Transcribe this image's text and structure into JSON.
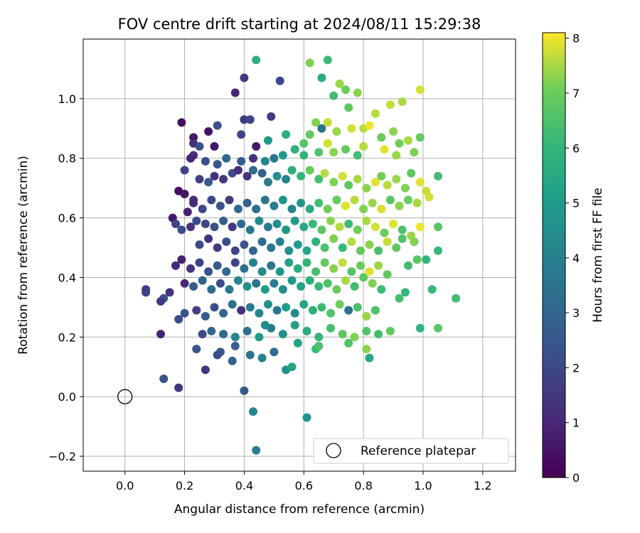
{
  "chart_data": {
    "type": "scatter",
    "title": "FOV centre drift starting at 2024/08/11 15:29:38",
    "xlabel": "Angular distance from reference (arcmin)",
    "ylabel": "Rotation from reference (arcmin)",
    "xlim": [
      -0.14,
      1.31
    ],
    "ylim": [
      -0.25,
      1.2
    ],
    "xticks": [
      "0.0",
      "0.2",
      "0.4",
      "0.6",
      "0.8",
      "1.0",
      "1.2"
    ],
    "yticks": [
      "−0.2",
      "0.0",
      "0.2",
      "0.4",
      "0.6",
      "0.8",
      "1.0"
    ],
    "grid": true,
    "colormap": "viridis",
    "colorbar": {
      "label": "Hours from first FF file",
      "range": [
        0,
        8.1
      ],
      "ticks": [
        "0",
        "1",
        "2",
        "3",
        "4",
        "5",
        "6",
        "7",
        "8"
      ]
    },
    "reference": {
      "label": "Reference platepar",
      "x": 0.0,
      "y": 0.0
    },
    "legend": {
      "placement": "lower-right"
    },
    "notes": "Approximately 1100 observation points; the full set cannot be read exactly, so a representative sample is listed with estimated positions and colour (hours).",
    "points": [
      [
        0.19,
        0.92,
        0.4
      ],
      [
        0.37,
        1.02,
        0.9
      ],
      [
        0.4,
        1.07,
        1.5
      ],
      [
        0.52,
        1.06,
        2.0
      ],
      [
        0.44,
        1.13,
        5.8
      ],
      [
        0.62,
        1.12,
        7.2
      ],
      [
        0.68,
        1.13,
        6.2
      ],
      [
        0.66,
        1.07,
        5.6
      ],
      [
        0.7,
        1.01,
        6.3
      ],
      [
        0.72,
        1.05,
        7.4
      ],
      [
        0.74,
        1.03,
        7.0
      ],
      [
        0.78,
        1.02,
        7.3
      ],
      [
        0.99,
        1.03,
        7.8
      ],
      [
        0.93,
        0.99,
        7.5
      ],
      [
        0.89,
        0.98,
        7.7
      ],
      [
        0.84,
        0.95,
        7.6
      ],
      [
        0.75,
        0.97,
        6.8
      ],
      [
        0.49,
        0.94,
        1.6
      ],
      [
        0.4,
        0.93,
        1.5
      ],
      [
        0.42,
        0.93,
        2.0
      ],
      [
        0.39,
        0.88,
        1.9
      ],
      [
        0.28,
        0.89,
        0.5
      ],
      [
        0.23,
        0.87,
        0.6
      ],
      [
        0.23,
        0.85,
        1.2
      ],
      [
        0.25,
        0.84,
        2.3
      ],
      [
        0.31,
        0.91,
        2.3
      ],
      [
        0.3,
        0.84,
        0.5
      ],
      [
        0.23,
        0.81,
        1.2
      ],
      [
        0.44,
        0.84,
        0.6
      ],
      [
        0.48,
        0.86,
        4.8
      ],
      [
        0.54,
        0.88,
        5.7
      ],
      [
        0.62,
        0.88,
        6.9
      ],
      [
        0.6,
        0.85,
        6.7
      ],
      [
        0.64,
        0.92,
        7.2
      ],
      [
        0.66,
        0.9,
        3.5
      ],
      [
        0.68,
        0.92,
        7.7
      ],
      [
        0.71,
        0.89,
        7.4
      ],
      [
        0.76,
        0.9,
        7.8
      ],
      [
        0.8,
        0.9,
        7.6
      ],
      [
        0.82,
        0.91,
        8.0
      ],
      [
        0.86,
        0.87,
        7.0
      ],
      [
        0.9,
        0.89,
        7.3
      ],
      [
        0.92,
        0.85,
        7.1
      ],
      [
        0.95,
        0.86,
        7.5
      ],
      [
        0.99,
        0.87,
        6.9
      ],
      [
        0.97,
        0.82,
        7.2
      ],
      [
        0.91,
        0.81,
        7.4
      ],
      [
        0.87,
        0.83,
        7.9
      ],
      [
        0.8,
        0.84,
        7.6
      ],
      [
        0.78,
        0.81,
        6.4
      ],
      [
        0.74,
        0.83,
        6.9
      ],
      [
        0.7,
        0.82,
        7.3
      ],
      [
        0.68,
        0.85,
        7.8
      ],
      [
        0.65,
        0.82,
        6.5
      ],
      [
        0.6,
        0.81,
        6.0
      ],
      [
        0.57,
        0.83,
        5.8
      ],
      [
        0.53,
        0.81,
        4.8
      ],
      [
        0.5,
        0.8,
        3.6
      ],
      [
        0.47,
        0.79,
        4.2
      ],
      [
        0.43,
        0.8,
        1.3
      ],
      [
        0.39,
        0.79,
        2.6
      ],
      [
        0.34,
        0.8,
        2.9
      ],
      [
        0.31,
        0.78,
        2.5
      ],
      [
        0.27,
        0.79,
        2.2
      ],
      [
        0.22,
        0.8,
        0.9
      ],
      [
        0.2,
        0.76,
        1.8
      ],
      [
        0.18,
        0.69,
        0.4
      ],
      [
        0.2,
        0.68,
        0.5
      ],
      [
        0.23,
        0.66,
        1.2
      ],
      [
        0.25,
        0.73,
        1.7
      ],
      [
        0.28,
        0.72,
        2.6
      ],
      [
        0.3,
        0.74,
        1.2
      ],
      [
        0.33,
        0.73,
        1.5
      ],
      [
        0.36,
        0.75,
        2.1
      ],
      [
        0.38,
        0.76,
        1.2
      ],
      [
        0.41,
        0.74,
        1.4
      ],
      [
        0.43,
        0.76,
        3.1
      ],
      [
        0.46,
        0.75,
        2.7
      ],
      [
        0.48,
        0.72,
        3.8
      ],
      [
        0.51,
        0.74,
        4.4
      ],
      [
        0.54,
        0.73,
        4.0
      ],
      [
        0.56,
        0.76,
        5.7
      ],
      [
        0.59,
        0.74,
        6.0
      ],
      [
        0.62,
        0.76,
        7.0
      ],
      [
        0.65,
        0.73,
        6.4
      ],
      [
        0.67,
        0.75,
        7.6
      ],
      [
        0.7,
        0.72,
        7.2
      ],
      [
        0.73,
        0.74,
        7.8
      ],
      [
        0.75,
        0.71,
        6.8
      ],
      [
        0.78,
        0.73,
        7.5
      ],
      [
        0.81,
        0.7,
        7.3
      ],
      [
        0.84,
        0.72,
        7.9
      ],
      [
        0.86,
        0.74,
        7.1
      ],
      [
        0.88,
        0.71,
        7.6
      ],
      [
        0.91,
        0.73,
        7.4
      ],
      [
        0.94,
        0.7,
        7.2
      ],
      [
        0.96,
        0.75,
        6.8
      ],
      [
        0.99,
        0.72,
        7.9
      ],
      [
        1.01,
        0.69,
        7.7
      ],
      [
        1.05,
        0.74,
        6.3
      ],
      [
        1.02,
        0.67,
        7.8
      ],
      [
        0.98,
        0.65,
        7.5
      ],
      [
        0.95,
        0.66,
        7.0
      ],
      [
        0.92,
        0.64,
        7.3
      ],
      [
        0.89,
        0.66,
        6.7
      ],
      [
        0.86,
        0.63,
        7.8
      ],
      [
        0.83,
        0.65,
        7.4
      ],
      [
        0.8,
        0.63,
        7.2
      ],
      [
        0.77,
        0.66,
        7.6
      ],
      [
        0.74,
        0.64,
        7.9
      ],
      [
        0.71,
        0.66,
        6.9
      ],
      [
        0.68,
        0.63,
        7.1
      ],
      [
        0.65,
        0.65,
        6.4
      ],
      [
        0.62,
        0.63,
        5.6
      ],
      [
        0.59,
        0.65,
        4.8
      ],
      [
        0.56,
        0.63,
        4.2
      ],
      [
        0.53,
        0.66,
        4.6
      ],
      [
        0.5,
        0.64,
        3.9
      ],
      [
        0.47,
        0.66,
        3.6
      ],
      [
        0.44,
        0.63,
        3.3
      ],
      [
        0.41,
        0.65,
        2.8
      ],
      [
        0.38,
        0.63,
        3.0
      ],
      [
        0.35,
        0.66,
        1.6
      ],
      [
        0.32,
        0.64,
        2.4
      ],
      [
        0.29,
        0.66,
        2.0
      ],
      [
        0.26,
        0.63,
        1.9
      ],
      [
        0.23,
        0.65,
        1.1
      ],
      [
        0.21,
        0.62,
        0.8
      ],
      [
        0.16,
        0.6,
        0.6
      ],
      [
        0.17,
        0.58,
        1.8
      ],
      [
        0.19,
        0.56,
        2.2
      ],
      [
        0.22,
        0.57,
        1.3
      ],
      [
        0.24,
        0.59,
        2.1
      ],
      [
        0.27,
        0.58,
        1.9
      ],
      [
        0.3,
        0.57,
        2.3
      ],
      [
        0.33,
        0.59,
        2.8
      ],
      [
        0.36,
        0.57,
        1.4
      ],
      [
        0.39,
        0.58,
        3.1
      ],
      [
        0.42,
        0.56,
        3.6
      ],
      [
        0.45,
        0.59,
        4.3
      ],
      [
        0.48,
        0.57,
        3.9
      ],
      [
        0.51,
        0.58,
        4.5
      ],
      [
        0.54,
        0.56,
        4.8
      ],
      [
        0.57,
        0.59,
        5.0
      ],
      [
        0.6,
        0.57,
        5.5
      ],
      [
        0.63,
        0.58,
        6.1
      ],
      [
        0.66,
        0.56,
        6.8
      ],
      [
        0.69,
        0.59,
        7.3
      ],
      [
        0.72,
        0.57,
        7.6
      ],
      [
        0.75,
        0.58,
        6.2
      ],
      [
        0.78,
        0.56,
        7.1
      ],
      [
        0.81,
        0.59,
        7.5
      ],
      [
        0.84,
        0.57,
        7.8
      ],
      [
        0.87,
        0.55,
        7.0
      ],
      [
        0.9,
        0.58,
        7.9
      ],
      [
        0.93,
        0.56,
        6.5
      ],
      [
        0.96,
        0.54,
        7.4
      ],
      [
        0.99,
        0.57,
        8.0
      ],
      [
        1.05,
        0.57,
        6.7
      ],
      [
        0.97,
        0.52,
        7.2
      ],
      [
        0.93,
        0.53,
        6.6
      ],
      [
        0.91,
        0.5,
        6.8
      ],
      [
        0.88,
        0.52,
        7.7
      ],
      [
        0.85,
        0.49,
        6.4
      ],
      [
        0.82,
        0.51,
        7.3
      ],
      [
        0.79,
        0.49,
        6.9
      ],
      [
        0.76,
        0.52,
        7.6
      ],
      [
        0.73,
        0.5,
        6.1
      ],
      [
        0.7,
        0.53,
        7.2
      ],
      [
        0.67,
        0.5,
        6.5
      ],
      [
        0.64,
        0.52,
        5.8
      ],
      [
        0.61,
        0.49,
        5.4
      ],
      [
        0.58,
        0.51,
        4.9
      ],
      [
        0.55,
        0.49,
        4.6
      ],
      [
        0.52,
        0.52,
        4.1
      ],
      [
        0.49,
        0.5,
        3.7
      ],
      [
        0.46,
        0.52,
        3.2
      ],
      [
        0.43,
        0.49,
        2.9
      ],
      [
        0.4,
        0.51,
        2.4
      ],
      [
        0.37,
        0.49,
        1.9
      ],
      [
        0.34,
        0.52,
        2.2
      ],
      [
        0.31,
        0.5,
        1.6
      ],
      [
        0.28,
        0.53,
        1.3
      ],
      [
        0.25,
        0.51,
        2.0
      ],
      [
        0.19,
        0.46,
        0.8
      ],
      [
        0.17,
        0.44,
        1.0
      ],
      [
        0.22,
        0.43,
        1.4
      ],
      [
        0.25,
        0.45,
        1.8
      ],
      [
        0.28,
        0.42,
        2.3
      ],
      [
        0.31,
        0.44,
        2.7
      ],
      [
        0.34,
        0.42,
        3.1
      ],
      [
        0.37,
        0.45,
        1.9
      ],
      [
        0.4,
        0.43,
        3.4
      ],
      [
        0.43,
        0.45,
        4.0
      ],
      [
        0.46,
        0.42,
        4.4
      ],
      [
        0.49,
        0.44,
        3.6
      ],
      [
        0.52,
        0.42,
        4.8
      ],
      [
        0.55,
        0.45,
        5.2
      ],
      [
        0.58,
        0.43,
        5.6
      ],
      [
        0.61,
        0.45,
        6.0
      ],
      [
        0.64,
        0.42,
        6.4
      ],
      [
        0.67,
        0.45,
        6.9
      ],
      [
        0.7,
        0.43,
        7.3
      ],
      [
        0.73,
        0.45,
        7.7
      ],
      [
        0.76,
        0.42,
        6.6
      ],
      [
        0.79,
        0.44,
        7.0
      ],
      [
        0.82,
        0.42,
        7.9
      ],
      [
        0.85,
        0.44,
        7.4
      ],
      [
        0.88,
        0.41,
        6.8
      ],
      [
        0.95,
        0.44,
        6.3
      ],
      [
        0.98,
        0.46,
        6.7
      ],
      [
        1.01,
        0.46,
        6.0
      ],
      [
        1.05,
        0.49,
        6.1
      ],
      [
        0.07,
        0.36,
        1.6
      ],
      [
        0.07,
        0.35,
        1.8
      ],
      [
        0.13,
        0.33,
        2.4
      ],
      [
        0.12,
        0.32,
        1.6
      ],
      [
        0.15,
        0.35,
        1.3
      ],
      [
        0.2,
        0.38,
        1.1
      ],
      [
        0.23,
        0.37,
        2.6
      ],
      [
        0.26,
        0.39,
        2.9
      ],
      [
        0.29,
        0.36,
        3.2
      ],
      [
        0.32,
        0.38,
        2.1
      ],
      [
        0.35,
        0.36,
        3.8
      ],
      [
        0.38,
        0.39,
        4.2
      ],
      [
        0.41,
        0.37,
        4.6
      ],
      [
        0.44,
        0.38,
        3.5
      ],
      [
        0.47,
        0.36,
        5.0
      ],
      [
        0.5,
        0.38,
        3.9
      ],
      [
        0.53,
        0.36,
        4.4
      ],
      [
        0.56,
        0.39,
        4.9
      ],
      [
        0.59,
        0.37,
        5.3
      ],
      [
        0.62,
        0.39,
        5.7
      ],
      [
        0.65,
        0.37,
        6.1
      ],
      [
        0.68,
        0.38,
        6.5
      ],
      [
        0.71,
        0.36,
        7.0
      ],
      [
        0.74,
        0.39,
        7.5
      ],
      [
        0.77,
        0.37,
        6.3
      ],
      [
        0.8,
        0.4,
        6.8
      ],
      [
        0.83,
        0.38,
        7.2
      ],
      [
        0.86,
        0.36,
        6.2
      ],
      [
        0.92,
        0.33,
        6.4
      ],
      [
        0.94,
        0.35,
        6.0
      ],
      [
        1.03,
        0.36,
        6.1
      ],
      [
        1.11,
        0.33,
        6.3
      ],
      [
        0.12,
        0.21,
        0.9
      ],
      [
        0.18,
        0.26,
        2.1
      ],
      [
        0.2,
        0.28,
        2.4
      ],
      [
        0.24,
        0.29,
        1.7
      ],
      [
        0.27,
        0.27,
        2.6
      ],
      [
        0.3,
        0.3,
        2.2
      ],
      [
        0.33,
        0.28,
        3.0
      ],
      [
        0.36,
        0.31,
        3.4
      ],
      [
        0.39,
        0.29,
        1.3
      ],
      [
        0.42,
        0.3,
        3.8
      ],
      [
        0.45,
        0.28,
        4.2
      ],
      [
        0.48,
        0.31,
        4.6
      ],
      [
        0.51,
        0.29,
        3.6
      ],
      [
        0.54,
        0.3,
        5.0
      ],
      [
        0.57,
        0.28,
        4.4
      ],
      [
        0.6,
        0.31,
        5.4
      ],
      [
        0.63,
        0.29,
        5.8
      ],
      [
        0.66,
        0.3,
        6.2
      ],
      [
        0.69,
        0.28,
        6.6
      ],
      [
        0.72,
        0.31,
        7.0
      ],
      [
        0.75,
        0.29,
        3.3
      ],
      [
        0.78,
        0.3,
        6.4
      ],
      [
        0.81,
        0.27,
        7.4
      ],
      [
        0.84,
        0.29,
        6.5
      ],
      [
        0.13,
        0.06,
        2.4
      ],
      [
        0.18,
        0.03,
        1.3
      ],
      [
        0.27,
        0.09,
        1.4
      ],
      [
        0.24,
        0.16,
        2.5
      ],
      [
        0.26,
        0.21,
        2.1
      ],
      [
        0.29,
        0.22,
        2.9
      ],
      [
        0.33,
        0.21,
        3.2
      ],
      [
        0.37,
        0.2,
        4.1
      ],
      [
        0.41,
        0.22,
        3.3
      ],
      [
        0.45,
        0.2,
        5.0
      ],
      [
        0.49,
        0.23,
        3.8
      ],
      [
        0.53,
        0.21,
        4.6
      ],
      [
        0.57,
        0.24,
        5.2
      ],
      [
        0.61,
        0.22,
        5.6
      ],
      [
        0.65,
        0.2,
        6.0
      ],
      [
        0.69,
        0.23,
        6.4
      ],
      [
        0.73,
        0.21,
        6.8
      ],
      [
        0.77,
        0.2,
        7.2
      ],
      [
        0.81,
        0.22,
        6.6
      ],
      [
        0.85,
        0.21,
        6.3
      ],
      [
        0.89,
        0.22,
        6.9
      ],
      [
        0.99,
        0.23,
        5.9
      ],
      [
        1.05,
        0.23,
        6.7
      ],
      [
        0.32,
        0.15,
        2.5
      ],
      [
        0.36,
        0.12,
        2.9
      ],
      [
        0.42,
        0.14,
        3.5
      ],
      [
        0.46,
        0.13,
        4.0
      ],
      [
        0.5,
        0.15,
        3.2
      ],
      [
        0.54,
        0.09,
        4.6
      ],
      [
        0.56,
        0.1,
        5.4
      ],
      [
        0.64,
        0.16,
        6.1
      ],
      [
        0.65,
        0.17,
        6.5
      ],
      [
        0.75,
        0.18,
        6.6
      ],
      [
        0.81,
        0.16,
        7.3
      ],
      [
        0.82,
        0.13,
        5.4
      ],
      [
        0.4,
        0.02,
        2.5
      ],
      [
        0.43,
        -0.05,
        4.2
      ],
      [
        0.61,
        -0.07,
        4.7
      ],
      [
        0.44,
        -0.18,
        3.8
      ],
      [
        0.37,
        0.17,
        2.8
      ],
      [
        0.31,
        0.14,
        2.1
      ],
      [
        0.47,
        0.24,
        4.4
      ],
      [
        0.58,
        0.18,
        5.2
      ]
    ]
  }
}
